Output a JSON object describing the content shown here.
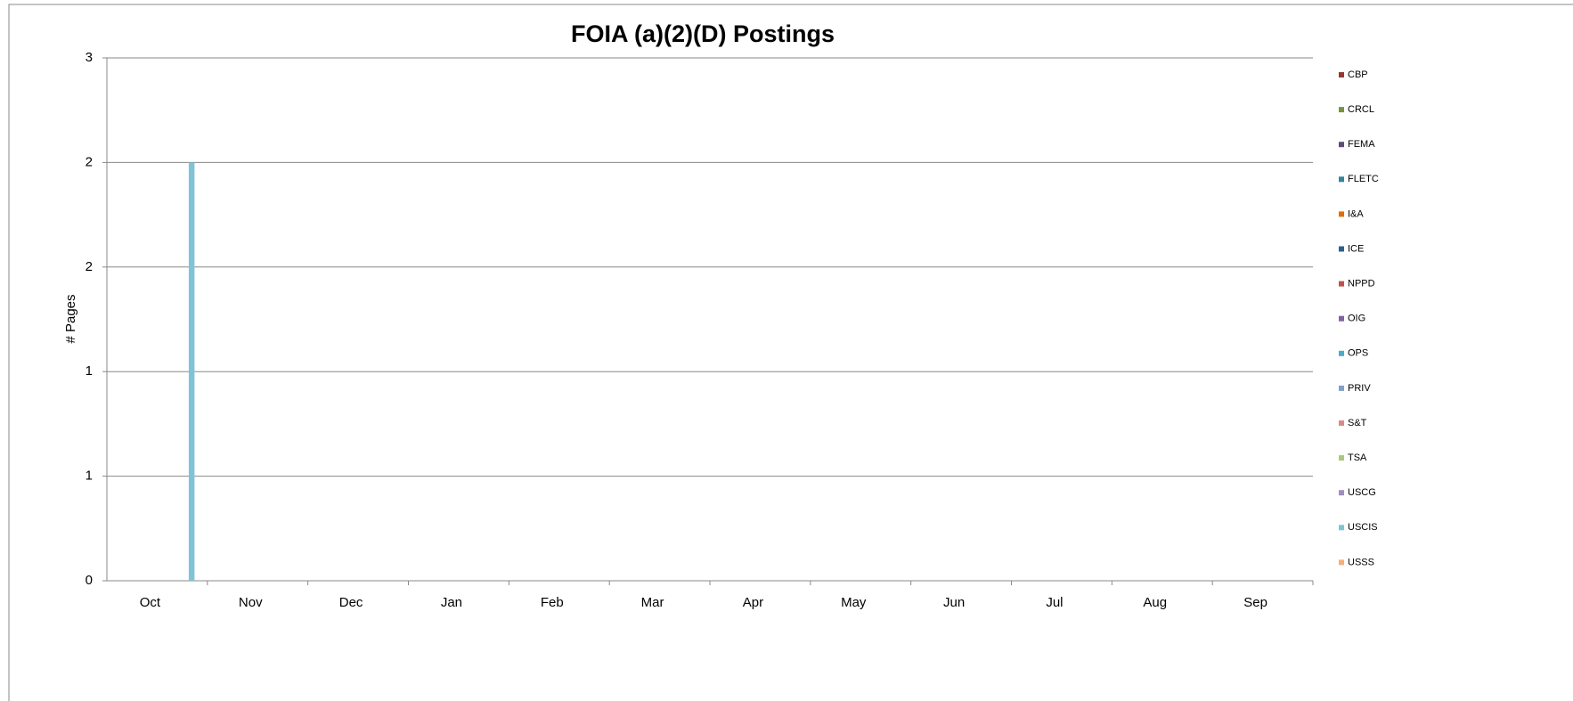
{
  "chart_data": {
    "type": "bar",
    "title": "FOIA (a)(2)(D) Postings",
    "y_label": "# Pages",
    "categories": [
      "Oct",
      "Nov",
      "Dec",
      "Jan",
      "Feb",
      "Mar",
      "Apr",
      "May",
      "Jun",
      "Jul",
      "Aug",
      "Sep"
    ],
    "ylim": [
      0,
      2.5
    ],
    "yticks": [
      0,
      {
        "value": 0.5,
        "label": "1"
      },
      1,
      {
        "value": 1.5,
        "label": "2"
      },
      2,
      {
        "value": 2.5,
        "label": "3"
      }
    ],
    "grid": true,
    "legend": "right",
    "series": [
      {
        "name": "CBP",
        "color": "#953735",
        "values": [
          0,
          0,
          0,
          0,
          0,
          0,
          0,
          0,
          0,
          0,
          0,
          0
        ]
      },
      {
        "name": "CRCL",
        "color": "#77933c",
        "values": [
          0,
          0,
          0,
          0,
          0,
          0,
          0,
          0,
          0,
          0,
          0,
          0
        ]
      },
      {
        "name": "FEMA",
        "color": "#604a7b",
        "values": [
          0,
          0,
          0,
          0,
          0,
          0,
          0,
          0,
          0,
          0,
          0,
          0
        ]
      },
      {
        "name": "FLETC",
        "color": "#31859c",
        "values": [
          0,
          0,
          0,
          0,
          0,
          0,
          0,
          0,
          0,
          0,
          0,
          0
        ]
      },
      {
        "name": "I&A",
        "color": "#e46c0a",
        "values": [
          0,
          0,
          0,
          0,
          0,
          0,
          0,
          0,
          0,
          0,
          0,
          0
        ]
      },
      {
        "name": "ICE",
        "color": "#2c5f8f",
        "values": [
          0,
          0,
          0,
          0,
          0,
          0,
          0,
          0,
          0,
          0,
          0,
          0
        ]
      },
      {
        "name": "NPPD",
        "color": "#c0504d",
        "values": [
          0,
          0,
          0,
          0,
          0,
          0,
          0,
          0,
          0,
          0,
          0,
          0
        ]
      },
      {
        "name": "OIG",
        "color": "#8064a2",
        "values": [
          0,
          0,
          0,
          0,
          0,
          0,
          0,
          0,
          0,
          0,
          0,
          0
        ]
      },
      {
        "name": "OPS",
        "color": "#4bacc6",
        "values": [
          0,
          0,
          0,
          0,
          0,
          0,
          0,
          0,
          0,
          0,
          0,
          0
        ]
      },
      {
        "name": "PRIV",
        "color": "#7f9fcf",
        "values": [
          0,
          0,
          0,
          0,
          0,
          0,
          0,
          0,
          0,
          0,
          0,
          0
        ]
      },
      {
        "name": "S&T",
        "color": "#d98b89",
        "values": [
          0,
          0,
          0,
          0,
          0,
          0,
          0,
          0,
          0,
          0,
          0,
          0
        ]
      },
      {
        "name": "TSA",
        "color": "#a9c97c",
        "values": [
          0,
          0,
          0,
          0,
          0,
          0,
          0,
          0,
          0,
          0,
          0,
          0
        ]
      },
      {
        "name": "USCG",
        "color": "#9f8fbf",
        "values": [
          0,
          0,
          0,
          0,
          0,
          0,
          0,
          0,
          0,
          0,
          0,
          0
        ]
      },
      {
        "name": "USCIS",
        "color": "#7fc4d6",
        "values": [
          2,
          0,
          0,
          0,
          0,
          0,
          0,
          0,
          0,
          0,
          0,
          0
        ]
      },
      {
        "name": "USSS",
        "color": "#f9ad7a",
        "values": [
          0,
          0,
          0,
          0,
          0,
          0,
          0,
          0,
          0,
          0,
          0,
          0
        ]
      }
    ]
  }
}
